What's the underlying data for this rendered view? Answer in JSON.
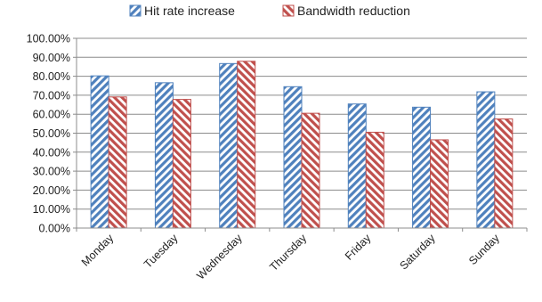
{
  "chart_data": {
    "type": "bar",
    "categories": [
      "Monday",
      "Tuesday",
      "Wednesday",
      "Thursday",
      "Friday",
      "Saturday",
      "Sunday"
    ],
    "series": [
      {
        "name": "Hit rate increase",
        "values": [
          80.2,
          76.6,
          86.7,
          74.5,
          65.4,
          63.7,
          71.8
        ],
        "color": "#4f81bd"
      },
      {
        "name": "Bandwidth reduction",
        "values": [
          69.1,
          67.8,
          87.9,
          60.5,
          50.5,
          46.5,
          57.5
        ],
        "color": "#c0504d"
      }
    ],
    "title": "",
    "xlabel": "",
    "ylabel": "",
    "ylim": [
      0,
      100
    ],
    "yticks": [
      "0.00%",
      "10.00%",
      "20.00%",
      "30.00%",
      "40.00%",
      "50.00%",
      "60.00%",
      "70.00%",
      "80.00%",
      "90.00%",
      "100.00%"
    ],
    "grid": true,
    "legend_position": "top"
  }
}
